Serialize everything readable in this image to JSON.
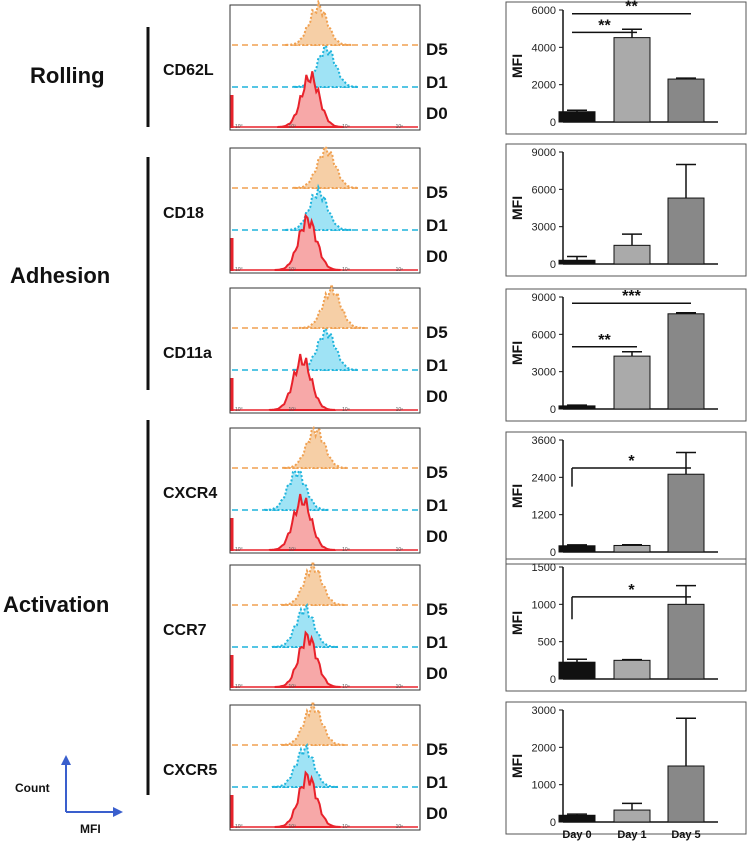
{
  "groups": [
    {
      "label": "Rolling"
    },
    {
      "label": "Adhesion"
    },
    {
      "label": "Activation"
    }
  ],
  "histogram": {
    "day_labels": [
      "D5",
      "D1",
      "D0"
    ],
    "colors": {
      "D0": "#e8222b",
      "D1": "#1fb4dc",
      "D5": "#f0a050",
      "D0_fill": "#f7a8a8",
      "D1_fill": "#9fe3f5",
      "D5_fill": "#f6cfa6"
    },
    "log_ticks": [
      "10⁰",
      "10²",
      "10⁴",
      "10⁶"
    ],
    "markers": [
      {
        "name": "CD62L",
        "peaks": {
          "D0": 2.7,
          "D1": 3.3,
          "D5": 3.0
        }
      },
      {
        "name": "CD18",
        "peaks": {
          "D0": 2.6,
          "D1": 3.0,
          "D5": 3.3
        }
      },
      {
        "name": "CD11a",
        "peaks": {
          "D0": 2.4,
          "D1": 3.3,
          "D5": 3.5
        }
      },
      {
        "name": "CXCR4",
        "peaks": {
          "D0": 2.4,
          "D1": 2.2,
          "D5": 2.9
        }
      },
      {
        "name": "CCR7",
        "peaks": {
          "D0": 2.6,
          "D1": 2.5,
          "D5": 2.8
        }
      },
      {
        "name": "CXCR5",
        "peaks": {
          "D0": 2.6,
          "D1": 2.5,
          "D5": 2.8
        }
      }
    ]
  },
  "legend": {
    "y_axis": "Count",
    "x_axis": "MFI"
  },
  "chart_data": [
    {
      "type": "bar",
      "marker": "CD62L",
      "ylabel": "MFI",
      "ylim": [
        0,
        6000
      ],
      "yticks": [
        0,
        2000,
        4000,
        6000
      ],
      "categories": [
        "Day 0",
        "Day 1",
        "Day 5"
      ],
      "values": [
        550,
        4520,
        2300
      ],
      "errors": [
        80,
        450,
        50
      ],
      "colors": [
        "#111111",
        "#aaaaaa",
        "#888888"
      ],
      "significance": [
        {
          "from": 0,
          "to": 1,
          "label": "**",
          "y": 4800
        },
        {
          "from": 0,
          "to": 2,
          "label": "**",
          "y": 5800
        }
      ]
    },
    {
      "type": "bar",
      "marker": "CD18",
      "ylabel": "MFI",
      "ylim": [
        0,
        9000
      ],
      "yticks": [
        0,
        3000,
        6000,
        9000
      ],
      "categories": [
        "Day 0",
        "Day 1",
        "Day 5"
      ],
      "values": [
        300,
        1500,
        5300
      ],
      "errors": [
        300,
        900,
        2700
      ],
      "colors": [
        "#111111",
        "#aaaaaa",
        "#888888"
      ],
      "significance": []
    },
    {
      "type": "bar",
      "marker": "CD11a",
      "ylabel": "MFI",
      "ylim": [
        0,
        9000
      ],
      "yticks": [
        0,
        3000,
        6000,
        9000
      ],
      "categories": [
        "Day 0",
        "Day 1",
        "Day 5"
      ],
      "values": [
        250,
        4250,
        7650
      ],
      "errors": [
        60,
        350,
        80
      ],
      "colors": [
        "#111111",
        "#aaaaaa",
        "#888888"
      ],
      "significance": [
        {
          "from": 0,
          "to": 1,
          "label": "**",
          "y": 5000
        },
        {
          "from": 0,
          "to": 2,
          "label": "***",
          "y": 8500
        }
      ]
    },
    {
      "type": "bar",
      "marker": "CXCR4",
      "ylabel": "MFI",
      "ylim": [
        0,
        3600
      ],
      "yticks": [
        0,
        1200,
        2400,
        3600
      ],
      "categories": [
        "Day 0",
        "Day 1",
        "Day 5"
      ],
      "values": [
        200,
        210,
        2500
      ],
      "errors": [
        30,
        25,
        700
      ],
      "colors": [
        "#111111",
        "#aaaaaa",
        "#888888"
      ],
      "significance": [
        {
          "from": 0,
          "to": 2,
          "label": "*",
          "y": 2700,
          "bracket": true,
          "drop": 600
        }
      ]
    },
    {
      "type": "bar",
      "marker": "CCR7",
      "ylabel": "MFI",
      "ylim": [
        0,
        1500
      ],
      "yticks": [
        0,
        500,
        1000,
        1500
      ],
      "categories": [
        "Day 0",
        "Day 1",
        "Day 5"
      ],
      "values": [
        225,
        250,
        1000
      ],
      "errors": [
        40,
        10,
        250
      ],
      "colors": [
        "#111111",
        "#aaaaaa",
        "#888888"
      ],
      "significance": [
        {
          "from": 0,
          "to": 2,
          "label": "*",
          "y": 1100,
          "bracket": true,
          "drop": 300
        }
      ]
    },
    {
      "type": "bar",
      "marker": "CXCR5",
      "ylabel": "MFI",
      "ylim": [
        0,
        3000
      ],
      "yticks": [
        0,
        1000,
        2000,
        3000
      ],
      "categories": [
        "Day 0",
        "Day 1",
        "Day 5"
      ],
      "values": [
        180,
        320,
        1500
      ],
      "errors": [
        30,
        180,
        1280
      ],
      "colors": [
        "#111111",
        "#aaaaaa",
        "#888888"
      ],
      "significance": []
    }
  ]
}
